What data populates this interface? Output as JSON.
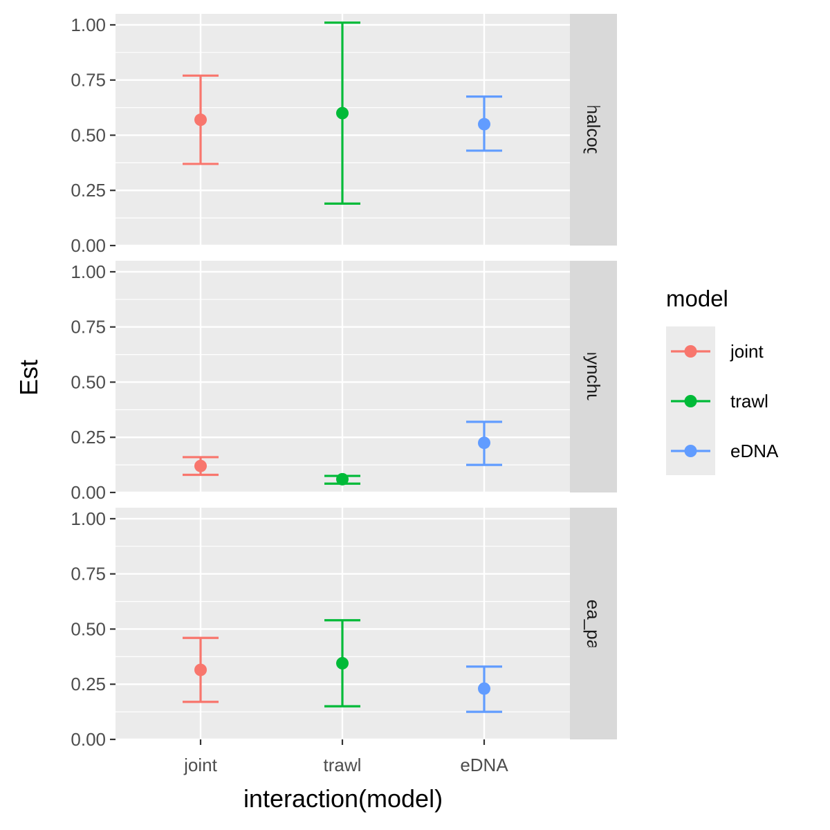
{
  "chart_data": {
    "type": "scatter",
    "subtype": "point-range with error bars, faceted",
    "xlabel": "interaction(model)",
    "ylabel": "Est",
    "categories": [
      "joint",
      "trawl",
      "eDNA"
    ],
    "ylim": [
      0,
      1.05
    ],
    "yticks": [
      0,
      0.25,
      0.5,
      0.75,
      1.0
    ],
    "ytick_labels": [
      "0.00",
      "0.25",
      "0.50",
      "0.75",
      "1.00"
    ],
    "grid": true,
    "legend": {
      "title": "model",
      "position": "right",
      "entries": [
        "joint",
        "trawl",
        "eDNA"
      ]
    },
    "colors": {
      "joint": "#F8766D",
      "trawl": "#00BA38",
      "eDNA": "#619CFF",
      "panel_bg": "#EBEBEB",
      "strip_bg": "#D9D9D9",
      "grid": "#FFFFFF"
    },
    "facets": [
      {
        "label": "adus_chalcogrammu",
        "points": [
          {
            "model": "joint",
            "est": 0.57,
            "low": 0.37,
            "high": 0.77
          },
          {
            "model": "trawl",
            "est": 0.6,
            "low": 0.19,
            "high": 1.01
          },
          {
            "model": "eDNA",
            "est": 0.55,
            "low": 0.43,
            "high": 0.675
          }
        ]
      },
      {
        "label": "Oncorhynchus_keta",
        "points": [
          {
            "model": "joint",
            "est": 0.12,
            "low": 0.08,
            "high": 0.16
          },
          {
            "model": "trawl",
            "est": 0.06,
            "low": 0.04,
            "high": 0.075
          },
          {
            "model": "eDNA",
            "est": 0.225,
            "low": 0.125,
            "high": 0.32
          }
        ]
      },
      {
        "label": "Clupea_pallasii",
        "points": [
          {
            "model": "joint",
            "est": 0.315,
            "low": 0.17,
            "high": 0.46
          },
          {
            "model": "trawl",
            "est": 0.345,
            "low": 0.15,
            "high": 0.54
          },
          {
            "model": "eDNA",
            "est": 0.23,
            "low": 0.125,
            "high": 0.33
          }
        ]
      }
    ]
  }
}
